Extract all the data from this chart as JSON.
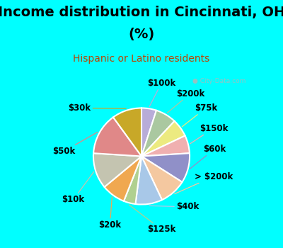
{
  "title_line1": "Income distribution in Cincinnati, OH",
  "title_line2": "(%)",
  "subtitle": "Hispanic or Latino residents",
  "background_color": "#00FFFF",
  "chart_bg": "#e2f2e2",
  "labels": [
    "$100k",
    "$200k",
    "$75k",
    "$150k",
    "$60k",
    "> $200k",
    "$40k",
    "$125k",
    "$20k",
    "$10k",
    "$50k",
    "$30k"
  ],
  "values": [
    5,
    7,
    6,
    6,
    10,
    9,
    9,
    4,
    8,
    12,
    14,
    10
  ],
  "colors": [
    "#b8acd8",
    "#aac8a0",
    "#ecea80",
    "#f0b0b0",
    "#9090c8",
    "#f4c8a0",
    "#a8c8e8",
    "#b0d090",
    "#f0a850",
    "#c4c4b0",
    "#e08888",
    "#c8a828"
  ],
  "start_angle": 90,
  "label_fontsize": 8.5,
  "title_fontsize": 14,
  "subtitle_fontsize": 10,
  "subtitle_color": "#bb4400",
  "watermark": "● City-Data.com"
}
